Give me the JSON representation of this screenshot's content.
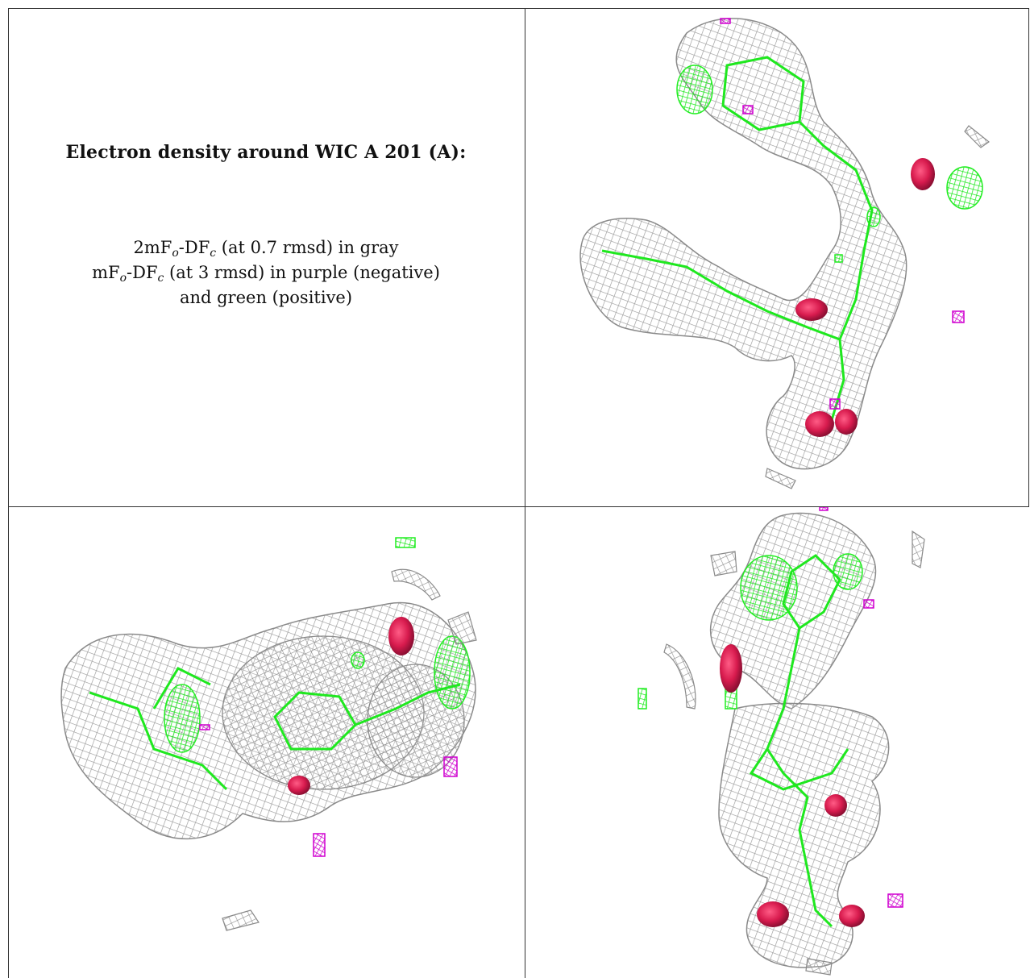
{
  "legend": {
    "title": "Electron density around WIC A 201 (A):",
    "line1": {
      "a": "2mF",
      "s1": "o",
      "b": "-DF",
      "s2": "c",
      "c": " (at 0.7 rmsd) in gray"
    },
    "line2": {
      "a": "mF",
      "s1": "o",
      "b": "-DF",
      "s2": "c",
      "c": " (at 3 rmsd) in purple (negative)"
    },
    "line3": "and green (positive)"
  },
  "colors": {
    "mesh_gray": "#a9a9a9",
    "mesh_green": "#22ee22",
    "mesh_purple": "#d000d0",
    "oxygen_red": "#d8204e",
    "border": "#333333"
  }
}
